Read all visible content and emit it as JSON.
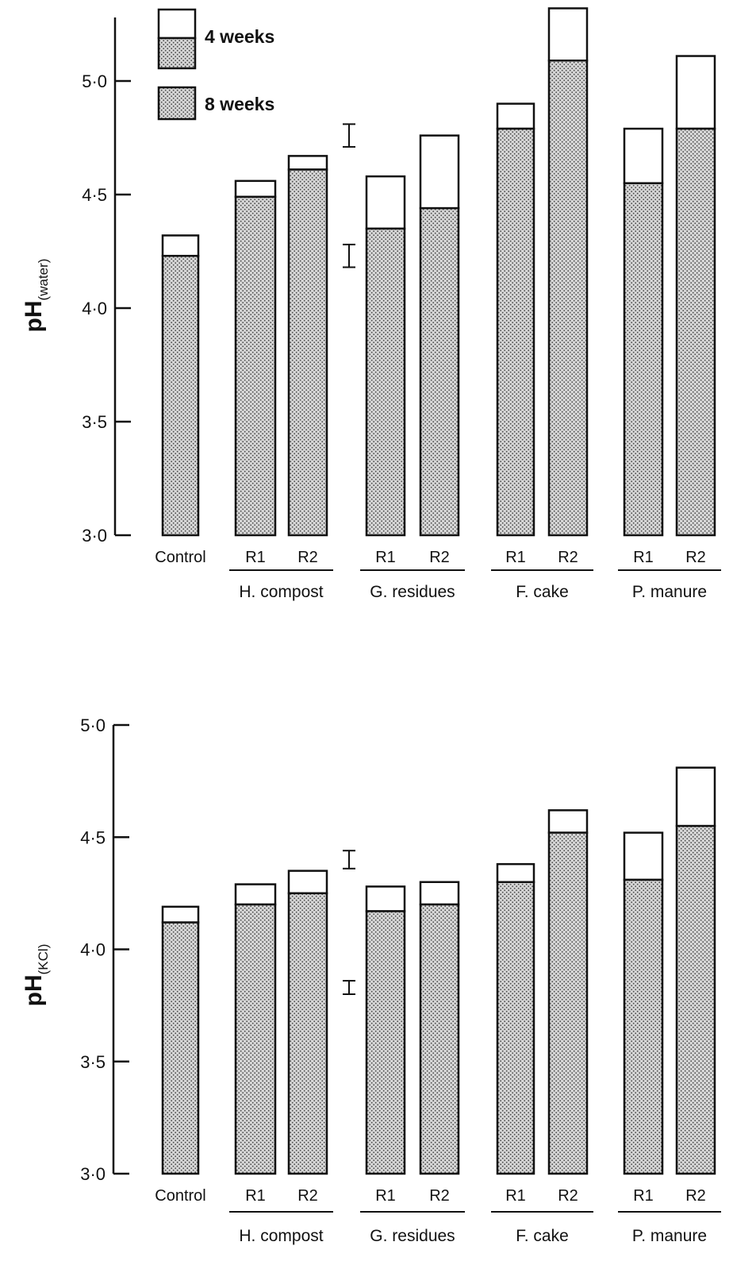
{
  "colors": {
    "ink": "#111111",
    "stipple_background": "#d6d6d6",
    "stipple_dot": "#4a4a4a",
    "four_week_fill": "#ffffff"
  },
  "legend": {
    "items": [
      {
        "key": "4wk",
        "label": "4 weeks",
        "fill": "open"
      },
      {
        "key": "8wk",
        "label": "8 weeks",
        "fill": "stippled"
      }
    ]
  },
  "chart_data": [
    {
      "type": "bar",
      "stacked_overlay": true,
      "ylabel_main": "pH",
      "ylabel_sub": "(water)",
      "ylim": [
        3.0,
        5.3
      ],
      "yticks": [
        3.0,
        3.5,
        4.0,
        4.5,
        5.0
      ],
      "ytick_labels": [
        "3·0",
        "3·5",
        "4·0",
        "4·5",
        "5·0"
      ],
      "categories": [
        "Control",
        "R1",
        "R2",
        "R1",
        "R2",
        "R1",
        "R2",
        "R1",
        "R2"
      ],
      "groups": [
        {
          "label": "",
          "members": [
            0
          ]
        },
        {
          "label": "H. compost",
          "members": [
            1,
            2
          ]
        },
        {
          "label": "G. residues",
          "members": [
            3,
            4
          ]
        },
        {
          "label": "F. cake",
          "members": [
            5,
            6
          ]
        },
        {
          "label": "P. manure",
          "members": [
            7,
            8
          ]
        }
      ],
      "series": [
        {
          "name": "4 weeks",
          "values": [
            4.32,
            4.56,
            4.67,
            4.58,
            4.76,
            4.9,
            5.32,
            4.79,
            5.11
          ]
        },
        {
          "name": "8 weeks",
          "values": [
            4.23,
            4.49,
            4.61,
            4.35,
            4.44,
            4.79,
            5.09,
            4.55,
            4.79
          ]
        }
      ],
      "error_bars": [
        {
          "center": 4.76,
          "half_width": 0.05
        },
        {
          "center": 4.23,
          "half_width": 0.05
        }
      ],
      "grid": false,
      "legend_position": "top-left"
    },
    {
      "type": "bar",
      "stacked_overlay": true,
      "ylabel_main": "pH",
      "ylabel_sub": "(KCl)",
      "ylim": [
        3.0,
        5.0
      ],
      "yticks": [
        3.0,
        3.5,
        4.0,
        4.5,
        5.0
      ],
      "ytick_labels": [
        "3·0",
        "3·5",
        "4·0",
        "4·5",
        "5·0"
      ],
      "categories": [
        "Control",
        "R1",
        "R2",
        "R1",
        "R2",
        "R1",
        "R2",
        "R1",
        "R2"
      ],
      "groups": [
        {
          "label": "",
          "members": [
            0
          ]
        },
        {
          "label": "H. compost",
          "members": [
            1,
            2
          ]
        },
        {
          "label": "G. residues",
          "members": [
            3,
            4
          ]
        },
        {
          "label": "F. cake",
          "members": [
            5,
            6
          ]
        },
        {
          "label": "P. manure",
          "members": [
            7,
            8
          ]
        }
      ],
      "series": [
        {
          "name": "4 weeks",
          "values": [
            4.19,
            4.29,
            4.35,
            4.28,
            4.3,
            4.38,
            4.62,
            4.52,
            4.81
          ]
        },
        {
          "name": "8 weeks",
          "values": [
            4.12,
            4.2,
            4.25,
            4.17,
            4.2,
            4.3,
            4.52,
            4.31,
            4.55
          ]
        }
      ],
      "error_bars": [
        {
          "center": 4.4,
          "half_width": 0.04
        },
        {
          "center": 3.83,
          "half_width": 0.03
        }
      ],
      "grid": false,
      "legend_position": "none"
    }
  ]
}
